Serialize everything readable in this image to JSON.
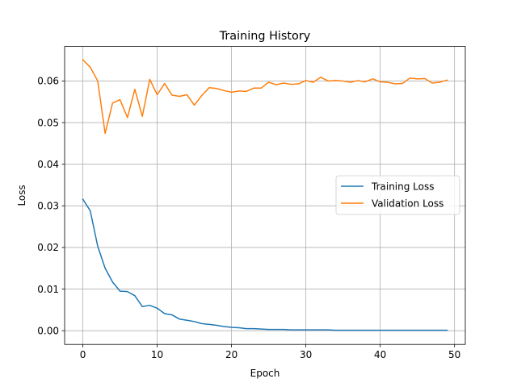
{
  "chart_data": {
    "type": "line",
    "title": "Training History",
    "xlabel": "Epoch",
    "ylabel": "Loss",
    "xlim": [
      -2.45,
      51.45
    ],
    "ylim": [
      -0.0033,
      0.0683
    ],
    "x_ticks": [
      0,
      10,
      20,
      30,
      40,
      50
    ],
    "y_ticks": [
      0.0,
      0.01,
      0.02,
      0.03,
      0.04,
      0.05,
      0.06
    ],
    "y_tick_labels": [
      "0.00",
      "0.01",
      "0.02",
      "0.03",
      "0.04",
      "0.05",
      "0.06"
    ],
    "grid": true,
    "legend_position": "center-right",
    "x": [
      0,
      1,
      2,
      3,
      4,
      5,
      6,
      7,
      8,
      9,
      10,
      11,
      12,
      13,
      14,
      15,
      16,
      17,
      18,
      19,
      20,
      21,
      22,
      23,
      24,
      25,
      26,
      27,
      28,
      29,
      30,
      31,
      32,
      33,
      34,
      35,
      36,
      37,
      38,
      39,
      40,
      41,
      42,
      43,
      44,
      45,
      46,
      47,
      48,
      49
    ],
    "series": [
      {
        "name": "Training Loss",
        "color": "#1f77b4",
        "values": [
          0.0316,
          0.0288,
          0.0203,
          0.015,
          0.0117,
          0.0095,
          0.0094,
          0.0084,
          0.0058,
          0.0061,
          0.0054,
          0.0041,
          0.0038,
          0.0028,
          0.0025,
          0.0022,
          0.0017,
          0.0015,
          0.0013,
          0.001,
          0.0008,
          0.0007,
          0.0005,
          0.0005,
          0.0004,
          0.0003,
          0.0003,
          0.0003,
          0.0002,
          0.0002,
          0.0002,
          0.0002,
          0.0002,
          0.0002,
          0.0001,
          0.0001,
          0.0001,
          0.0001,
          0.0001,
          0.0001,
          0.0001,
          0.0001,
          0.0001,
          0.0001,
          0.0001,
          0.0001,
          0.0001,
          0.0001,
          0.0001,
          0.0001
        ]
      },
      {
        "name": "Validation Loss",
        "color": "#ff7f0e",
        "values": [
          0.0651,
          0.0633,
          0.06,
          0.0474,
          0.0547,
          0.0555,
          0.0512,
          0.058,
          0.0515,
          0.0604,
          0.0567,
          0.0594,
          0.0566,
          0.0563,
          0.0567,
          0.0542,
          0.0565,
          0.0584,
          0.0582,
          0.0577,
          0.0573,
          0.0576,
          0.0575,
          0.0583,
          0.0583,
          0.0597,
          0.0591,
          0.0595,
          0.0592,
          0.0593,
          0.0601,
          0.0597,
          0.0609,
          0.06,
          0.0601,
          0.06,
          0.0597,
          0.0601,
          0.0598,
          0.0605,
          0.0598,
          0.0597,
          0.0593,
          0.0594,
          0.0607,
          0.0605,
          0.0606,
          0.0595,
          0.0597,
          0.0602
        ]
      }
    ]
  }
}
